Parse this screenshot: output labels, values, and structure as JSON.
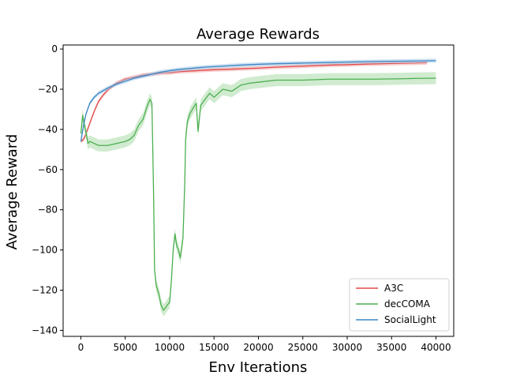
{
  "chart_data": {
    "type": "line",
    "title": "Average Rewards",
    "xlabel": "Env Iterations",
    "ylabel": "Average Reward",
    "xlim": [
      -2000,
      42000
    ],
    "ylim": [
      -143,
      2
    ],
    "xticks": [
      0,
      5000,
      10000,
      15000,
      20000,
      25000,
      30000,
      35000,
      40000
    ],
    "xtick_labels": [
      "0",
      "5000",
      "10000",
      "15000",
      "20000",
      "25000",
      "30000",
      "35000",
      "40000"
    ],
    "yticks": [
      0,
      -20,
      -40,
      -60,
      -80,
      -100,
      -120,
      -140
    ],
    "ytick_labels": [
      "0",
      "−20",
      "−40",
      "−60",
      "−80",
      "−100",
      "−120",
      "−140"
    ],
    "grid": false,
    "legend_position": "lower-right",
    "series": [
      {
        "name": "A3C",
        "color": "#e04a4a",
        "band_color": "#f2a9a9",
        "x": [
          0,
          300,
          600,
          1000,
          1500,
          2000,
          2500,
          3000,
          4000,
          5000,
          6000,
          7000,
          8000,
          9000,
          10000,
          11000,
          12000,
          13000,
          14000,
          15000,
          17000,
          20000,
          22000,
          25000,
          28000,
          30000,
          32000,
          35000,
          37000,
          39000
        ],
        "y": [
          -46,
          -45,
          -42,
          -37,
          -31,
          -26,
          -23,
          -20.5,
          -17,
          -15,
          -14,
          -13,
          -12.5,
          -12,
          -11.8,
          -11.3,
          -11,
          -10.8,
          -10.5,
          -10.3,
          -10,
          -9.5,
          -9,
          -8.5,
          -8,
          -7.8,
          -7.5,
          -7.2,
          -7,
          -6.8
        ],
        "band": 1.0
      },
      {
        "name": "decCOMA",
        "color": "#4caf50",
        "band_color": "#a9dba8",
        "x": [
          0,
          200,
          400,
          600,
          800,
          1000,
          1500,
          2000,
          3000,
          4000,
          5000,
          5500,
          6000,
          6500,
          7000,
          7500,
          7800,
          8000,
          8100,
          8200,
          8300,
          8500,
          8800,
          9000,
          9300,
          9500,
          9800,
          10000,
          10200,
          10400,
          10600,
          10700,
          10800,
          11000,
          11200,
          11500,
          11700,
          11800,
          12000,
          12300,
          12700,
          13000,
          13200,
          13500,
          14000,
          14500,
          15000,
          16000,
          17000,
          18000,
          19000,
          20000,
          22000,
          25000,
          28000,
          30000,
          33000,
          36000,
          38000,
          40000
        ],
        "y": [
          -42,
          -33,
          -38,
          -42,
          -47,
          -46,
          -47,
          -48,
          -48,
          -47,
          -46,
          -45,
          -43,
          -38,
          -35,
          -28,
          -25,
          -27,
          -50,
          -75,
          -110,
          -118,
          -122,
          -127,
          -130,
          -129,
          -127,
          -126,
          -115,
          -100,
          -92,
          -95,
          -98,
          -100,
          -104,
          -94,
          -67,
          -45,
          -36,
          -32,
          -29,
          -27,
          -41,
          -28,
          -25,
          -22,
          -24,
          -20,
          -21,
          -18,
          -17,
          -16.5,
          -15.5,
          -15.5,
          -15,
          -15,
          -15,
          -14.8,
          -14.6,
          -14.5
        ],
        "band": 3.0
      },
      {
        "name": "SocialLight",
        "color": "#3b86c4",
        "band_color": "#a5c9e6",
        "x": [
          0,
          300,
          600,
          1000,
          1500,
          2000,
          3000,
          4000,
          5000,
          6000,
          7000,
          8000,
          9000,
          10000,
          11000,
          12000,
          14000,
          16000,
          18000,
          20000,
          22000,
          25000,
          28000,
          30000,
          32000,
          35000,
          37000,
          40000
        ],
        "y": [
          -46,
          -38,
          -32,
          -27,
          -24,
          -22,
          -19.5,
          -17.5,
          -16,
          -14.5,
          -13.5,
          -12.5,
          -11.5,
          -10.8,
          -10.2,
          -9.8,
          -9,
          -8.5,
          -8,
          -7.6,
          -7.3,
          -7,
          -6.7,
          -6.5,
          -6.3,
          -6.1,
          -6,
          -5.8
        ],
        "band": 1.0
      }
    ]
  }
}
